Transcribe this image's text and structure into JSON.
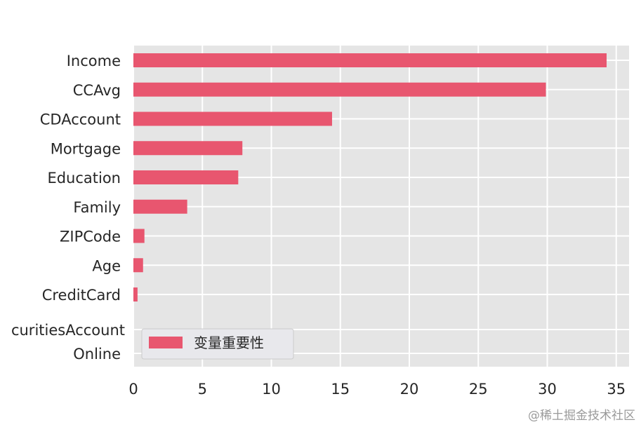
{
  "chart_data": {
    "type": "bar",
    "orientation": "horizontal",
    "categories": [
      "Income",
      "CCAvg",
      "CDAccount",
      "Mortgage",
      "Education",
      "Family",
      "ZIPCode",
      "Age",
      "CreditCard",
      "SecuritiesAccount",
      "Online"
    ],
    "category_labels_shown": [
      "Income",
      "CCAvg",
      "CDAccount",
      "Mortgage",
      "Education",
      "Family",
      "ZIPCode",
      "Age",
      "CreditCard",
      "curitiesAccount",
      "Online"
    ],
    "series": [
      {
        "name": "变量重要性",
        "values": [
          34.3,
          29.9,
          14.4,
          7.9,
          7.6,
          3.9,
          0.8,
          0.7,
          0.3,
          0.0,
          0.0
        ]
      }
    ],
    "xlim": [
      0,
      36
    ],
    "xticks": [
      "0",
      "5",
      "10",
      "15",
      "20",
      "25",
      "30",
      "35"
    ],
    "xtick_values": [
      0,
      5,
      10,
      15,
      20,
      25,
      30,
      35
    ],
    "grid": true,
    "legend_position": "lower-left",
    "colors": {
      "bar": "#e8566f",
      "plot_background": "#e5e5e5",
      "grid": "#ffffff",
      "text": "#262626"
    }
  },
  "watermark": "@稀土掘金技术社区"
}
